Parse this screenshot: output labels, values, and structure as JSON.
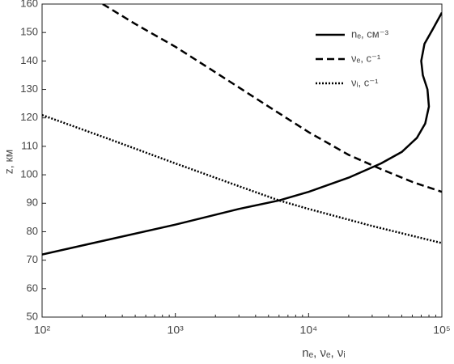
{
  "chart_data": {
    "type": "line",
    "x_label": "nₑ, νₑ, νᵢ",
    "y_label": "z, км",
    "xscale": "log",
    "xlim": [
      100,
      100000
    ],
    "xticks": [
      {
        "value": 100,
        "label": "10²"
      },
      {
        "value": 1000,
        "label": "10³"
      },
      {
        "value": 10000,
        "label": "10⁴"
      },
      {
        "value": 100000,
        "label": "10⁵"
      }
    ],
    "ylim": [
      50,
      160
    ],
    "yticks": [
      50,
      60,
      70,
      80,
      90,
      100,
      110,
      120,
      130,
      140,
      150,
      160
    ],
    "grid": false,
    "legend": "upper right",
    "series": [
      {
        "name": "nₑ, см⁻³",
        "color": "#000000",
        "dash": "solid",
        "x": [
          100,
          300,
          1000,
          3000,
          6000,
          10000,
          20000,
          35000,
          50000,
          65000,
          75000,
          80000,
          78000,
          72000,
          70000,
          74000,
          85000,
          100000
        ],
        "values": [
          72,
          77,
          82.5,
          88,
          91,
          94,
          99,
          104,
          108,
          113,
          118,
          124,
          130,
          135,
          140,
          146,
          151,
          157
        ]
      },
      {
        "name": "νₑ, с⁻¹",
        "color": "#000000",
        "dash": "dashed",
        "x": [
          285,
          500,
          1000,
          2000,
          5000,
          10000,
          20000,
          35000,
          60000,
          100000
        ],
        "values": [
          160,
          153,
          145,
          136,
          124,
          115,
          107,
          102,
          97.5,
          94
        ]
      },
      {
        "name": "νᵢ, с⁻¹",
        "color": "#000000",
        "dash": "dotted",
        "x": [
          100,
          300,
          1000,
          3000,
          6000,
          10000,
          30000,
          100000
        ],
        "values": [
          121,
          113,
          104,
          96,
          91,
          88,
          82,
          76
        ]
      }
    ]
  }
}
